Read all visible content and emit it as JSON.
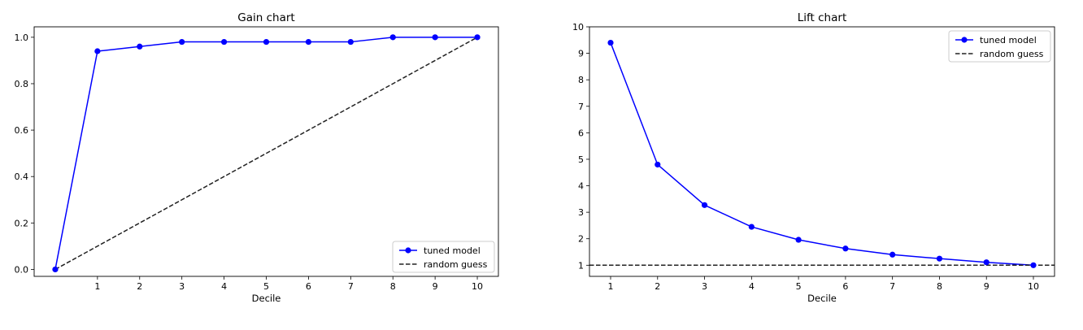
{
  "chart_data": [
    {
      "type": "line",
      "title": "Gain chart",
      "xlabel": "Decile",
      "ylabel": "",
      "x": [
        0,
        1,
        2,
        3,
        4,
        5,
        6,
        7,
        8,
        9,
        10
      ],
      "xticks": [
        1,
        2,
        3,
        4,
        5,
        6,
        7,
        8,
        9,
        10
      ],
      "xlim": [
        -0.5,
        10.5
      ],
      "yticks": [
        "0.0",
        "0.2",
        "0.4",
        "0.6",
        "0.8",
        "1.0"
      ],
      "ylim": [
        -0.03,
        1.045
      ],
      "grid": false,
      "legend_position": "lower-right",
      "series": [
        {
          "name": "tuned model",
          "style": "solid-with-markers",
          "color": "#0000ff",
          "values": [
            0.0,
            0.94,
            0.96,
            0.98,
            0.98,
            0.98,
            0.98,
            0.98,
            1.0,
            1.0,
            1.0
          ]
        },
        {
          "name": "random guess",
          "style": "dashed",
          "color": "#222222",
          "values": [
            0.0,
            0.1,
            0.2,
            0.3,
            0.4,
            0.5,
            0.6,
            0.7,
            0.8,
            0.9,
            1.0
          ]
        }
      ]
    },
    {
      "type": "line",
      "title": "Lift chart",
      "xlabel": "Decile",
      "ylabel": "",
      "x": [
        1,
        2,
        3,
        4,
        5,
        6,
        7,
        8,
        9,
        10
      ],
      "xticks": [
        1,
        2,
        3,
        4,
        5,
        6,
        7,
        8,
        9,
        10
      ],
      "xlim": [
        0.55,
        10.45
      ],
      "yticks": [
        "1",
        "2",
        "3",
        "4",
        "5",
        "6",
        "7",
        "8",
        "9",
        "10"
      ],
      "ylim": [
        0.58,
        10.0
      ],
      "grid": false,
      "legend_position": "upper-right",
      "series": [
        {
          "name": "tuned model",
          "style": "solid-with-markers",
          "color": "#0000ff",
          "values": [
            9.4,
            4.8,
            3.27,
            2.45,
            1.96,
            1.63,
            1.4,
            1.25,
            1.11,
            1.0
          ]
        },
        {
          "name": "random guess",
          "style": "dashed-horizontal",
          "color": "#222222",
          "hline": 1.0
        }
      ]
    }
  ]
}
